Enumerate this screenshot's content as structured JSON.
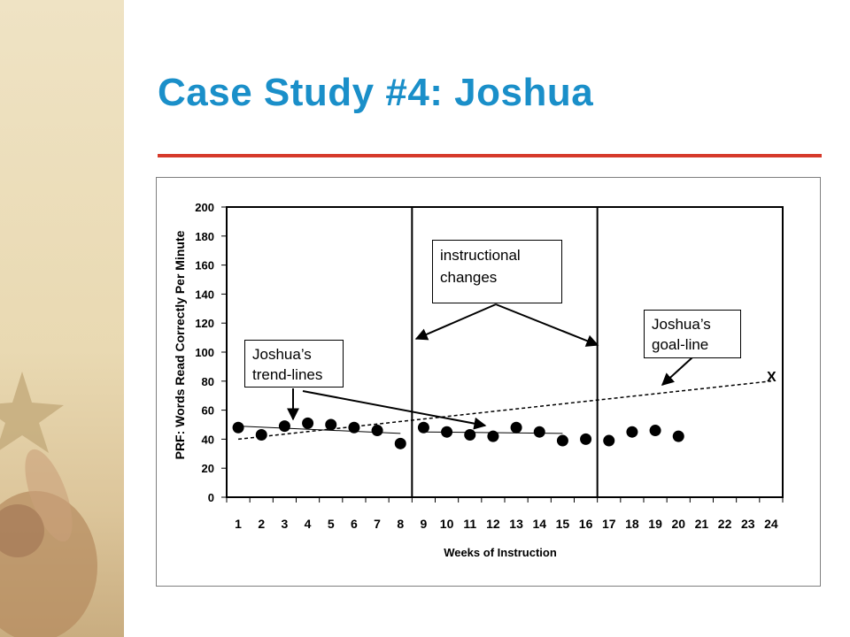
{
  "slide": {
    "title": "Case Study #4: Joshua"
  },
  "colors": {
    "title": "#1a8fc9",
    "title_rule": "#d63a2b",
    "side_panel": "#e9d9b2"
  },
  "annotations": {
    "instructional_changes": "instructional changes",
    "goal_line_label": "Joshua’s goal-line",
    "trend_lines_label": "Joshua’s trend-lines",
    "goal_marker": "X"
  },
  "chart_data": {
    "type": "scatter",
    "title": "",
    "xlabel": "Weeks of Instruction",
    "ylabel": "PRF: Words Read Correctly Per Minute",
    "ylim": [
      0,
      200
    ],
    "yticks": [
      0,
      20,
      40,
      60,
      80,
      100,
      120,
      140,
      160,
      180,
      200
    ],
    "categories": [
      "1",
      "2",
      "3",
      "4",
      "5",
      "6",
      "7",
      "8",
      "9",
      "10",
      "11",
      "12",
      "13",
      "14",
      "15",
      "16",
      "17",
      "18",
      "19",
      "20",
      "21",
      "22",
      "23",
      "24"
    ],
    "series": [
      {
        "values": [
          48,
          43,
          49,
          51,
          50,
          48,
          46,
          37,
          48,
          45,
          43,
          42,
          48,
          45,
          39,
          40,
          39,
          45,
          46,
          42
        ]
      }
    ],
    "phase_change_lines_after_week": [
      8,
      16
    ],
    "goal_line": {
      "start": {
        "week": 1,
        "value": 40
      },
      "end": {
        "week": 24,
        "value": 80
      }
    },
    "trend_lines": [
      {
        "start": {
          "week": 1,
          "value": 49
        },
        "end": {
          "week": 8,
          "value": 44
        }
      },
      {
        "start": {
          "week": 9,
          "value": 45
        },
        "end": {
          "week": 15,
          "value": 44
        }
      }
    ],
    "grid": false,
    "legend": "none"
  }
}
